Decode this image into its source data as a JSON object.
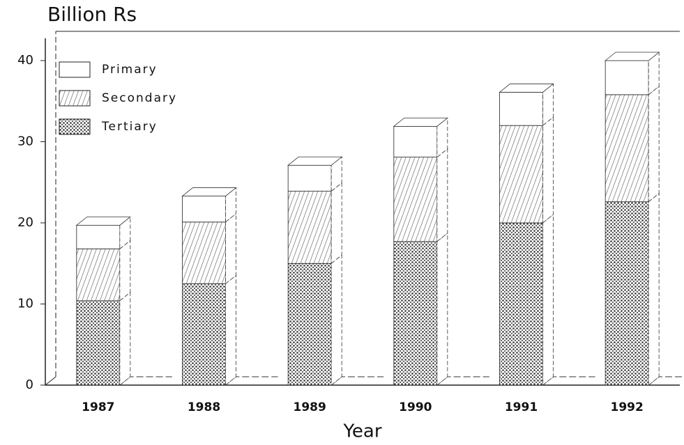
{
  "chart_data": {
    "type": "bar",
    "stacked": true,
    "three_d": true,
    "title": "Billion Rs",
    "x_label": "Year",
    "categories": [
      "1987",
      "1988",
      "1989",
      "1990",
      "1991",
      "1992"
    ],
    "series": [
      {
        "name": "Primary",
        "color": "#ffffff",
        "values": [
          2.9,
          3.2,
          3.2,
          3.8,
          4.1,
          4.2
        ]
      },
      {
        "name": "Secondary",
        "color": "#bdbdbd",
        "values": [
          6.4,
          7.6,
          8.9,
          10.4,
          12.0,
          13.2
        ]
      },
      {
        "name": "Tertiary",
        "color": "#7a7a7a",
        "values": [
          10.4,
          12.5,
          15.0,
          17.7,
          20.0,
          22.6
        ]
      }
    ],
    "ylim": [
      0,
      40
    ],
    "yticks": [
      0,
      10,
      20,
      30,
      40
    ],
    "legend": "upper-left"
  }
}
